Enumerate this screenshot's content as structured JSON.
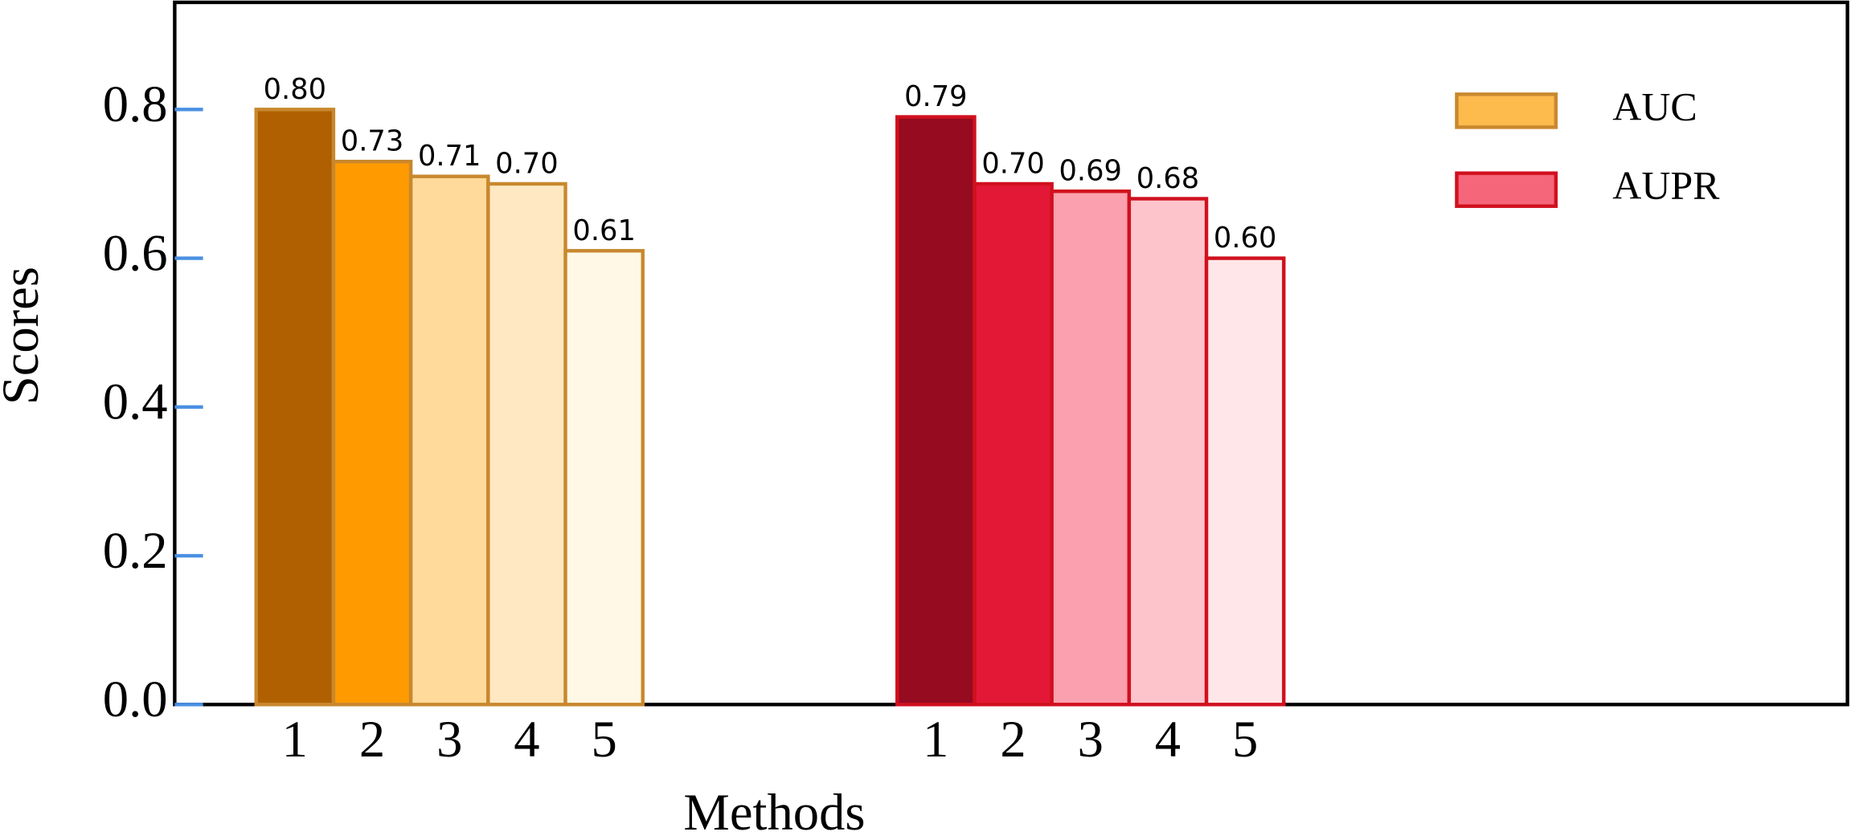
{
  "chart_data": {
    "type": "bar",
    "x_label": "Methods",
    "y_label": "Scores",
    "categories": [
      "1",
      "2",
      "3",
      "4",
      "5"
    ],
    "series": [
      {
        "name": "AUC",
        "color": "#fdba4d",
        "edgecolor": "#c8882e",
        "colors": [
          "#b06000",
          "#ff9a00",
          "#ffda9a",
          "#ffe8c2",
          "#fff8e6"
        ],
        "values": [
          0.8,
          0.73,
          0.71,
          0.7,
          0.61
        ],
        "value_labels": [
          "0.80",
          "0.73",
          "0.71",
          "0.70",
          "0.61"
        ]
      },
      {
        "name": "AUPR",
        "color": "#f5667a",
        "edgecolor": "#d0101e",
        "colors": [
          "#960b20",
          "#e31837",
          "#fba0ae",
          "#fdc4cc",
          "#fee6e9"
        ],
        "values": [
          0.79,
          0.7,
          0.69,
          0.68,
          0.6
        ],
        "value_labels": [
          "0.79",
          "0.70",
          "0.69",
          "0.68",
          "0.60"
        ]
      }
    ],
    "ylim": [
      0,
      0.944
    ],
    "yticks": [
      {
        "value": 0,
        "label": "0.0"
      },
      0.2,
      0.4,
      0.6,
      0.8
    ],
    "tick_color": "#4a90e2",
    "legend": "upper right"
  }
}
